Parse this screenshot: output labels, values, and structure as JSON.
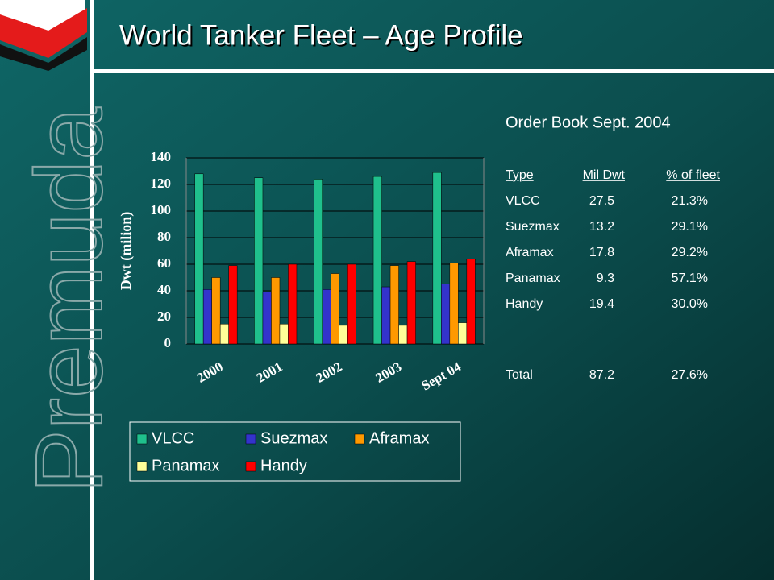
{
  "brand": "Premuda",
  "title": "World Tanker Fleet – Age Profile",
  "chart_data": {
    "type": "bar",
    "y_label": "Dwt (milion)",
    "categories": [
      "2000",
      "2001",
      "2002",
      "2003",
      "Sept 04"
    ],
    "series": [
      {
        "name": "VLCC",
        "color": "#1fc08c",
        "values": [
          128,
          125,
          124,
          126,
          129
        ]
      },
      {
        "name": "Suezmax",
        "color": "#3333cc",
        "values": [
          41,
          39,
          41,
          43,
          45
        ]
      },
      {
        "name": "Aframax",
        "color": "#ff9900",
        "values": [
          50,
          50,
          53,
          59,
          61
        ]
      },
      {
        "name": "Panamax",
        "color": "#ffff99",
        "values": [
          15,
          15,
          14,
          14,
          16
        ]
      },
      {
        "name": "Handy",
        "color": "#ff0000",
        "values": [
          59,
          60,
          60,
          62,
          64
        ]
      }
    ],
    "ylim": [
      0,
      140
    ],
    "yticks": [
      0,
      20,
      40,
      60,
      80,
      100,
      120,
      140
    ],
    "grid": true
  },
  "order_book": {
    "title": "Order Book Sept. 2004",
    "header": [
      "Type",
      "Mil Dwt",
      "% of fleet"
    ],
    "rows": [
      [
        "VLCC",
        "27.5",
        "21.3%"
      ],
      [
        "Suezmax",
        "13.2",
        "29.1%"
      ],
      [
        "Aframax",
        "17.8",
        "29.2%"
      ],
      [
        "Panamax",
        "9.3",
        "57.1%"
      ],
      [
        "Handy",
        "19.4",
        "30.0%"
      ],
      [
        "Total",
        "87.2",
        "27.6%"
      ]
    ]
  }
}
